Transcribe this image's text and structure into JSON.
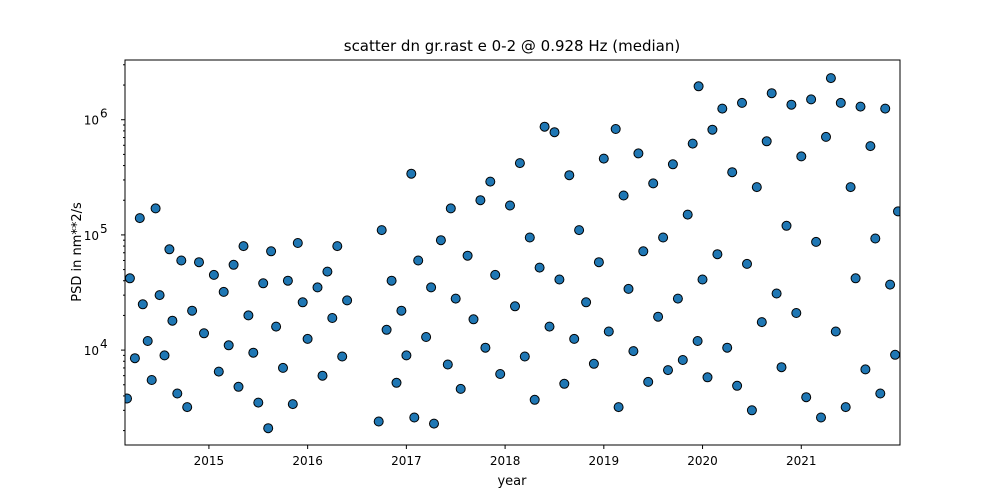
{
  "chart_data": {
    "type": "scatter",
    "title": "scatter dn gr.rast e 0-2 @ 0.928 Hz (median)",
    "xlabel": "year",
    "ylabel": "PSD in nm**2/s",
    "xlim": [
      2014.15,
      2022.0
    ],
    "ylim": [
      1500,
      3300000
    ],
    "yscale": "log",
    "grid": false,
    "marker_color": "#1f77b4",
    "marker_edge": "#000000",
    "x_ticks": [
      "2015",
      "2016",
      "2017",
      "2018",
      "2019",
      "2020",
      "2021"
    ],
    "y_ticks": [
      {
        "value": 10000,
        "base": "10",
        "exp": "4"
      },
      {
        "value": 100000,
        "base": "10",
        "exp": "5"
      },
      {
        "value": 1000000,
        "base": "10",
        "exp": "6"
      }
    ],
    "series": [
      {
        "points": [
          [
            2014.17,
            3800
          ],
          [
            2014.2,
            42000
          ],
          [
            2014.25,
            8500
          ],
          [
            2014.3,
            140000
          ],
          [
            2014.33,
            25000
          ],
          [
            2014.38,
            12000
          ],
          [
            2014.42,
            5500
          ],
          [
            2014.46,
            170000
          ],
          [
            2014.5,
            30000
          ],
          [
            2014.55,
            9000
          ],
          [
            2014.6,
            75000
          ],
          [
            2014.63,
            18000
          ],
          [
            2014.68,
            4200
          ],
          [
            2014.72,
            60000
          ],
          [
            2014.78,
            3200
          ],
          [
            2014.83,
            22000
          ],
          [
            2014.9,
            58000
          ],
          [
            2014.95,
            14000
          ],
          [
            2015.05,
            45000
          ],
          [
            2015.1,
            6500
          ],
          [
            2015.15,
            32000
          ],
          [
            2015.2,
            11000
          ],
          [
            2015.25,
            55000
          ],
          [
            2015.3,
            4800
          ],
          [
            2015.35,
            80000
          ],
          [
            2015.4,
            20000
          ],
          [
            2015.45,
            9500
          ],
          [
            2015.5,
            3500
          ],
          [
            2015.55,
            38000
          ],
          [
            2015.6,
            2100
          ],
          [
            2015.63,
            72000
          ],
          [
            2015.68,
            16000
          ],
          [
            2015.75,
            7000
          ],
          [
            2015.8,
            40000
          ],
          [
            2015.85,
            3400
          ],
          [
            2015.9,
            85000
          ],
          [
            2015.95,
            26000
          ],
          [
            2016.0,
            12500
          ],
          [
            2016.1,
            35000
          ],
          [
            2016.15,
            6000
          ],
          [
            2016.2,
            48000
          ],
          [
            2016.25,
            19000
          ],
          [
            2016.3,
            80000
          ],
          [
            2016.35,
            8800
          ],
          [
            2016.4,
            27000
          ],
          [
            2016.72,
            2400
          ],
          [
            2016.75,
            110000
          ],
          [
            2016.8,
            15000
          ],
          [
            2016.85,
            40000
          ],
          [
            2016.9,
            5200
          ],
          [
            2016.95,
            22000
          ],
          [
            2017.0,
            9000
          ],
          [
            2017.05,
            340000
          ],
          [
            2017.08,
            2600
          ],
          [
            2017.12,
            60000
          ],
          [
            2017.2,
            13000
          ],
          [
            2017.25,
            35000
          ],
          [
            2017.28,
            2300
          ],
          [
            2017.35,
            90000
          ],
          [
            2017.42,
            7500
          ],
          [
            2017.45,
            170000
          ],
          [
            2017.5,
            28000
          ],
          [
            2017.55,
            4600
          ],
          [
            2017.62,
            66000
          ],
          [
            2017.68,
            18500
          ],
          [
            2017.75,
            200000
          ],
          [
            2017.8,
            10500
          ],
          [
            2017.85,
            290000
          ],
          [
            2017.9,
            45000
          ],
          [
            2017.95,
            6200
          ],
          [
            2018.05,
            180000
          ],
          [
            2018.1,
            24000
          ],
          [
            2018.15,
            420000
          ],
          [
            2018.2,
            8800
          ],
          [
            2018.25,
            95000
          ],
          [
            2018.3,
            3700
          ],
          [
            2018.35,
            52000
          ],
          [
            2018.4,
            870000
          ],
          [
            2018.45,
            16000
          ],
          [
            2018.5,
            780000
          ],
          [
            2018.55,
            41000
          ],
          [
            2018.6,
            5100
          ],
          [
            2018.65,
            330000
          ],
          [
            2018.7,
            12500
          ],
          [
            2018.75,
            110000
          ],
          [
            2018.82,
            26000
          ],
          [
            2018.9,
            7600
          ],
          [
            2018.95,
            58000
          ],
          [
            2019.0,
            460000
          ],
          [
            2019.05,
            14500
          ],
          [
            2019.12,
            830000
          ],
          [
            2019.15,
            3200
          ],
          [
            2019.2,
            220000
          ],
          [
            2019.25,
            34000
          ],
          [
            2019.3,
            9800
          ],
          [
            2019.35,
            510000
          ],
          [
            2019.4,
            72000
          ],
          [
            2019.45,
            5300
          ],
          [
            2019.5,
            280000
          ],
          [
            2019.55,
            19500
          ],
          [
            2019.6,
            95000
          ],
          [
            2019.65,
            6700
          ],
          [
            2019.7,
            410000
          ],
          [
            2019.75,
            28000
          ],
          [
            2019.8,
            8200
          ],
          [
            2019.85,
            150000
          ],
          [
            2019.9,
            620000
          ],
          [
            2019.95,
            12000
          ],
          [
            2019.96,
            1950000
          ],
          [
            2020.0,
            41000
          ],
          [
            2020.05,
            5800
          ],
          [
            2020.1,
            820000
          ],
          [
            2020.15,
            68000
          ],
          [
            2020.2,
            1250000
          ],
          [
            2020.25,
            10500
          ],
          [
            2020.3,
            350000
          ],
          [
            2020.35,
            4900
          ],
          [
            2020.4,
            1400000
          ],
          [
            2020.45,
            56000
          ],
          [
            2020.5,
            3000
          ],
          [
            2020.55,
            260000
          ],
          [
            2020.6,
            17500
          ],
          [
            2020.65,
            650000
          ],
          [
            2020.7,
            1700000
          ],
          [
            2020.75,
            31000
          ],
          [
            2020.8,
            7100
          ],
          [
            2020.85,
            120000
          ],
          [
            2020.9,
            1350000
          ],
          [
            2020.95,
            21000
          ],
          [
            2021.0,
            480000
          ],
          [
            2021.05,
            3900
          ],
          [
            2021.1,
            1500000
          ],
          [
            2021.15,
            87000
          ],
          [
            2021.2,
            2600
          ],
          [
            2021.25,
            710000
          ],
          [
            2021.3,
            2300000
          ],
          [
            2021.35,
            14500
          ],
          [
            2021.4,
            1400000
          ],
          [
            2021.45,
            3200
          ],
          [
            2021.5,
            260000
          ],
          [
            2021.55,
            42000
          ],
          [
            2021.6,
            1300000
          ],
          [
            2021.65,
            6800
          ],
          [
            2021.7,
            590000
          ],
          [
            2021.75,
            93000
          ],
          [
            2021.8,
            4200
          ],
          [
            2021.85,
            1250000
          ],
          [
            2021.9,
            37000
          ],
          [
            2021.95,
            9100
          ],
          [
            2021.98,
            160000
          ]
        ]
      }
    ]
  }
}
